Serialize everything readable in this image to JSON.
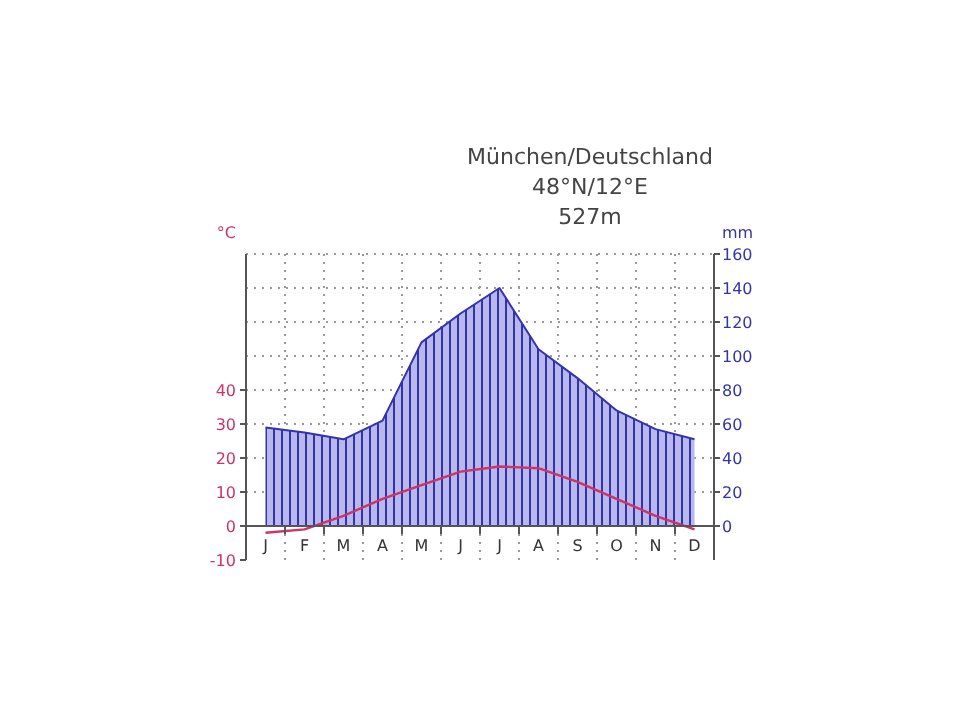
{
  "chart_data": {
    "type": "line",
    "title": "München/Deutschland",
    "subtitle": "48°N/12°E",
    "annotations": [
      "527m"
    ],
    "ylabel": "°C",
    "y2label": "mm",
    "categories": [
      "J",
      "F",
      "M",
      "A",
      "M",
      "J",
      "J",
      "A",
      "S",
      "O",
      "N",
      "D"
    ],
    "series": [
      {
        "type": "area",
        "axis": "y2",
        "color": "#3333aa",
        "values": [
          58,
          55,
          51,
          62,
          108,
          125,
          140,
          104,
          87,
          68,
          57,
          51
        ]
      },
      {
        "color": "#cc3366",
        "values": [
          -2,
          -1,
          3,
          8,
          12,
          16,
          17.5,
          17,
          13,
          8,
          3,
          -1
        ]
      }
    ],
    "ylim": [
      -10,
      80
    ],
    "yticks": [
      -10,
      0,
      10,
      20,
      30,
      40
    ],
    "y2lim": [
      -20,
      160
    ],
    "y2ticks": [
      0,
      20,
      40,
      60,
      80,
      100,
      120,
      140,
      160
    ],
    "grid": true,
    "line_style": "solid",
    "marker": "none"
  }
}
